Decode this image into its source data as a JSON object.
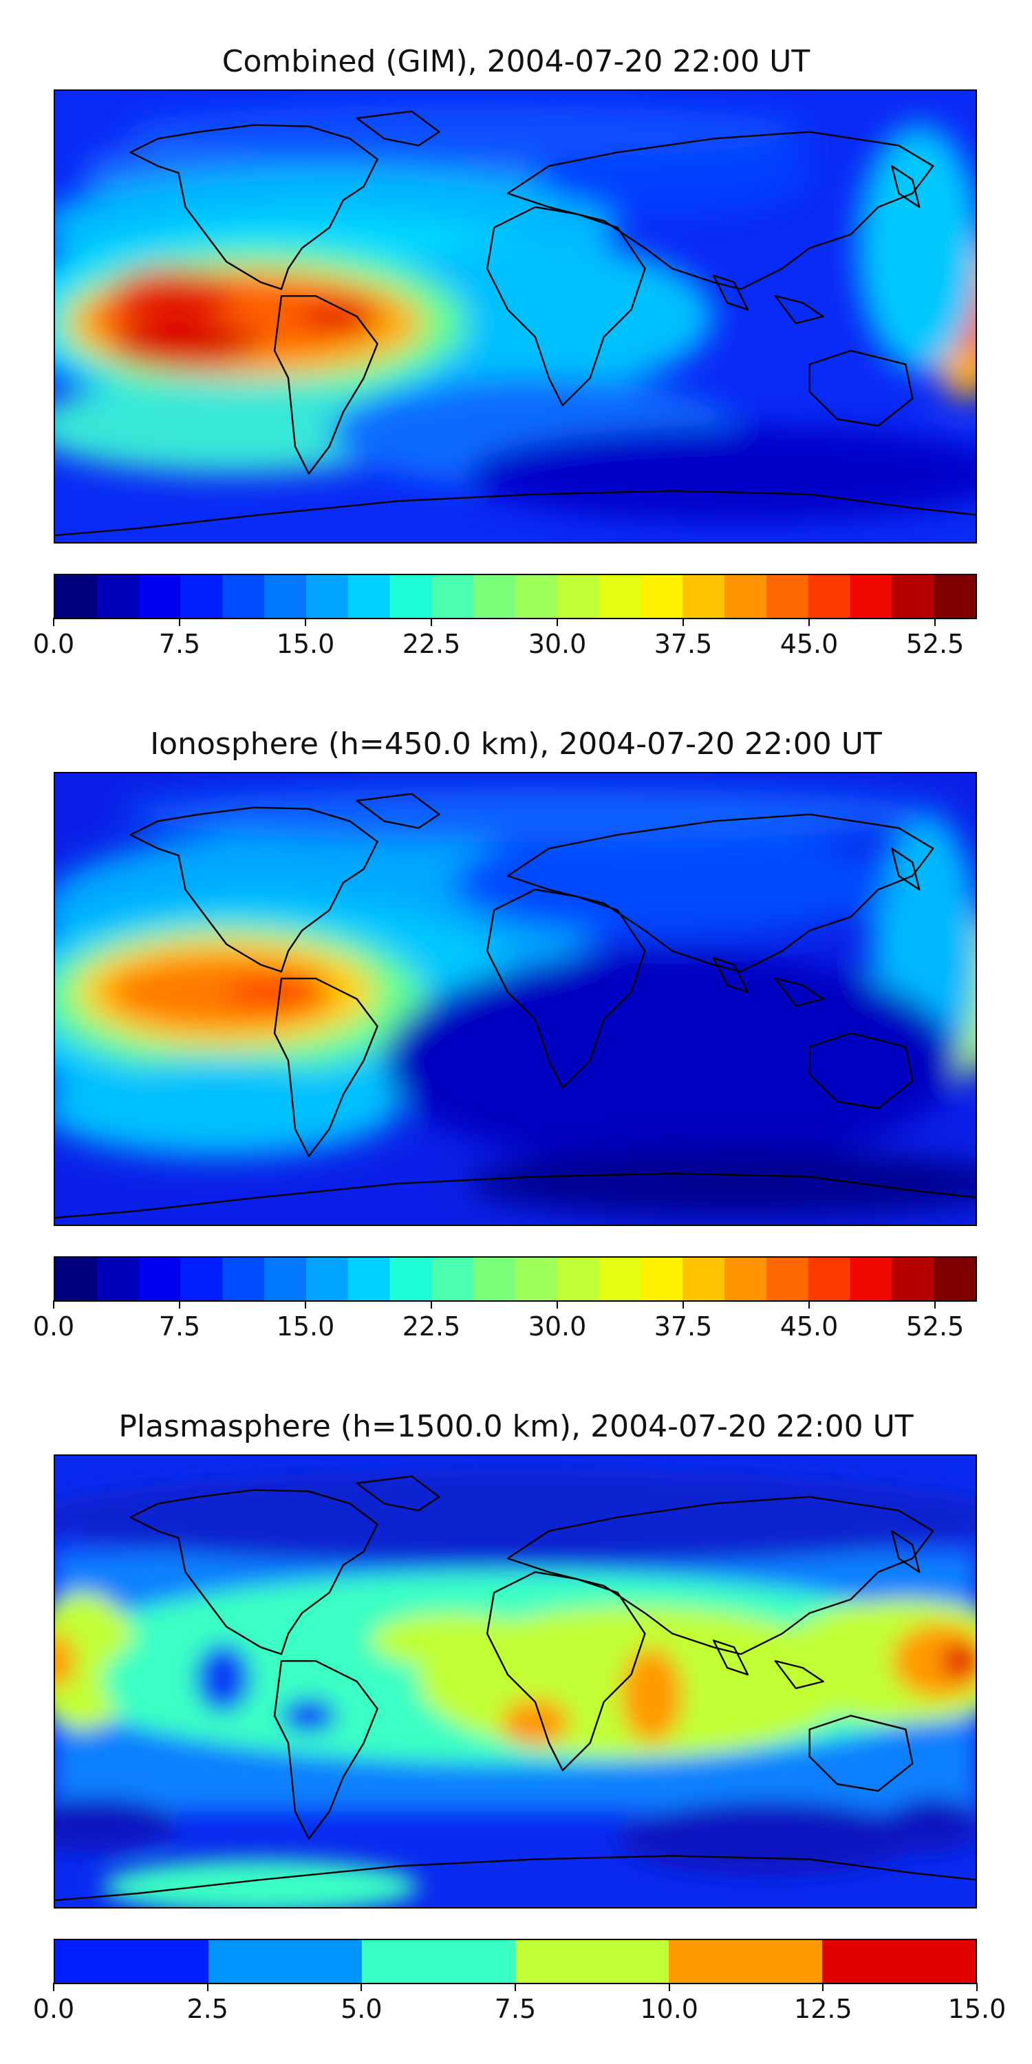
{
  "panels": [
    {
      "title": "Combined (GIM), 2004-07-20 22:00 UT",
      "colorbar": {
        "range": [
          0.0,
          55.0
        ],
        "tick_labels": [
          "0.0",
          "7.5",
          "15.0",
          "22.5",
          "30.0",
          "37.5",
          "45.0",
          "52.5"
        ],
        "tick_values": [
          0.0,
          7.5,
          15.0,
          22.5,
          30.0,
          37.5,
          45.0,
          52.5
        ],
        "colors": [
          "#00007f",
          "#0000b8",
          "#0000f1",
          "#0020ff",
          "#004cff",
          "#0078ff",
          "#00a4ff",
          "#00d0ff",
          "#1fffd7",
          "#4affad",
          "#7bff7b",
          "#9dff5a",
          "#c1ff36",
          "#e4ff13",
          "#fff200",
          "#ffc200",
          "#ff9400",
          "#ff6800",
          "#ff3b00",
          "#f10800",
          "#b50000",
          "#7f0000"
        ]
      }
    },
    {
      "title": "Ionosphere  (h=450.0 km), 2004-07-20 22:00 UT",
      "colorbar": {
        "range": [
          0.0,
          55.0
        ],
        "tick_labels": [
          "0.0",
          "7.5",
          "15.0",
          "22.5",
          "30.0",
          "37.5",
          "45.0",
          "52.5"
        ],
        "tick_values": [
          0.0,
          7.5,
          15.0,
          22.5,
          30.0,
          37.5,
          45.0,
          52.5
        ],
        "colors": [
          "#00007f",
          "#0000b8",
          "#0000f1",
          "#0020ff",
          "#004cff",
          "#0078ff",
          "#00a4ff",
          "#00d0ff",
          "#1fffd7",
          "#4affad",
          "#7bff7b",
          "#9dff5a",
          "#c1ff36",
          "#e4ff13",
          "#fff200",
          "#ffc200",
          "#ff9400",
          "#ff6800",
          "#ff3b00",
          "#f10800",
          "#b50000",
          "#7f0000"
        ]
      }
    },
    {
      "title": "Plasmasphere (h=1500.0 km), 2004-07-20 22:00 UT",
      "colorbar": {
        "range": [
          0.0,
          15.0
        ],
        "tick_labels": [
          "0.0",
          "2.5",
          "5.0",
          "7.5",
          "10.0",
          "12.5",
          "15.0"
        ],
        "tick_values": [
          0.0,
          2.5,
          5.0,
          7.5,
          10.0,
          12.5,
          15.0
        ],
        "colors": [
          "#0020ff",
          "#0094ff",
          "#3affc4",
          "#c1ff36",
          "#ff9a00",
          "#e00000"
        ]
      }
    }
  ]
}
